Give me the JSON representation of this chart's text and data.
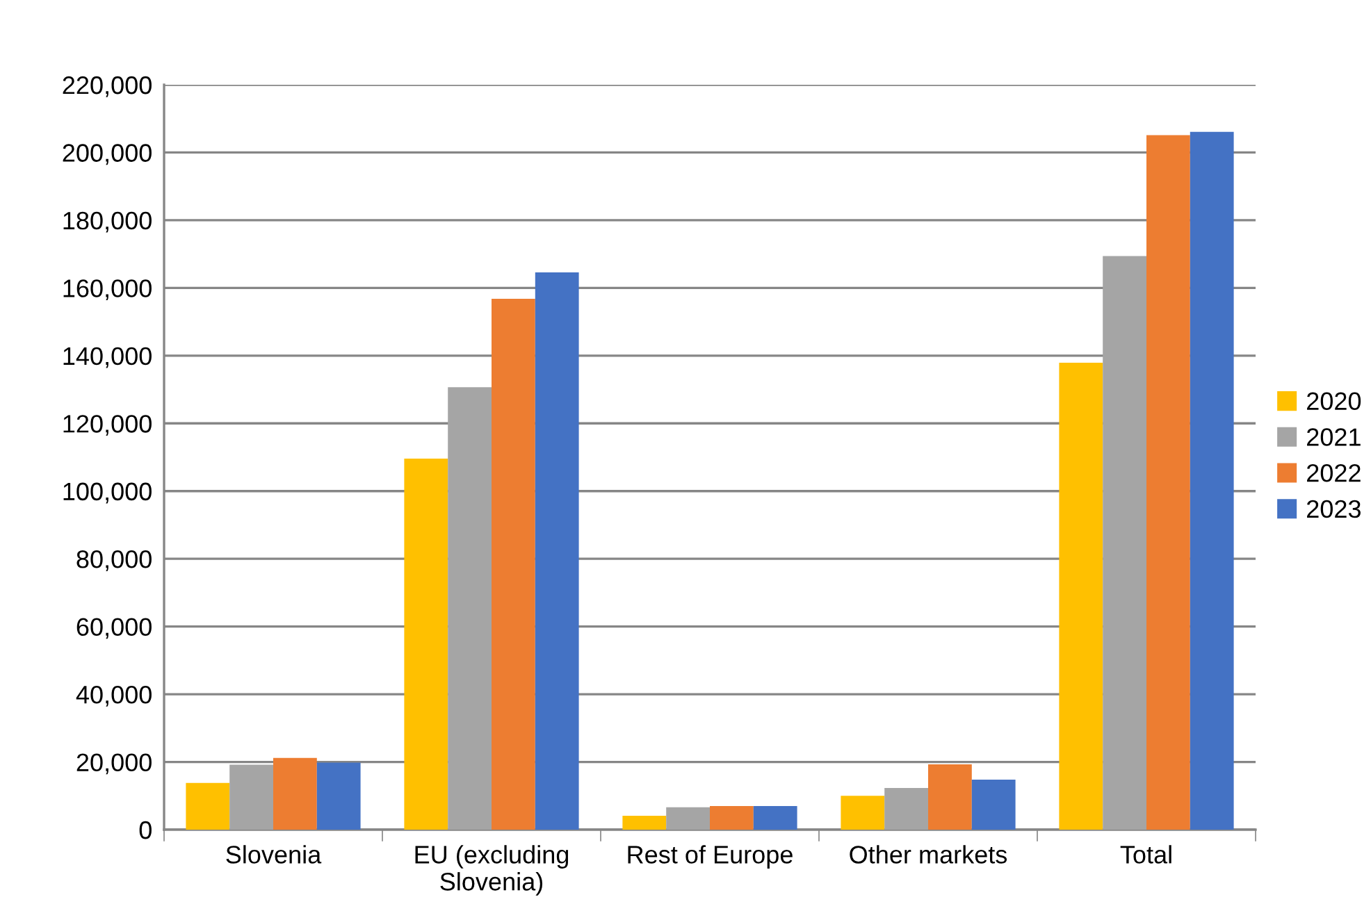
{
  "chart_data": {
    "type": "bar",
    "categories": [
      "Slovenia",
      "EU (excluding\nSlovenia)",
      "Rest of Europe",
      "Other markets",
      "Total"
    ],
    "series": [
      {
        "name": "2020",
        "color": "#ffc000",
        "values": [
          13800,
          109600,
          4100,
          10000,
          137900
        ]
      },
      {
        "name": "2021",
        "color": "#a5a5a5",
        "values": [
          19200,
          130700,
          6600,
          12300,
          169400
        ]
      },
      {
        "name": "2022",
        "color": "#ed7d31",
        "values": [
          21200,
          156800,
          7000,
          19300,
          205100
        ]
      },
      {
        "name": "2023",
        "color": "#4472c4",
        "values": [
          19800,
          164600,
          7000,
          14800,
          206100
        ]
      }
    ],
    "ylim": [
      0,
      220000
    ],
    "yticks": [
      {
        "value": 0,
        "label": "0"
      },
      {
        "value": 20000,
        "label": "20,000"
      },
      {
        "value": 40000,
        "label": "40,000"
      },
      {
        "value": 60000,
        "label": "60,000"
      },
      {
        "value": 80000,
        "label": "80,000"
      },
      {
        "value": 100000,
        "label": "100,000"
      },
      {
        "value": 120000,
        "label": "120,000"
      },
      {
        "value": 140000,
        "label": "140,000"
      },
      {
        "value": 160000,
        "label": "160,000"
      },
      {
        "value": 180000,
        "label": "180,000"
      },
      {
        "value": 200000,
        "label": "200,000"
      },
      {
        "value": 220000,
        "label": "220,000"
      }
    ],
    "grid": "y",
    "legend": "right"
  }
}
